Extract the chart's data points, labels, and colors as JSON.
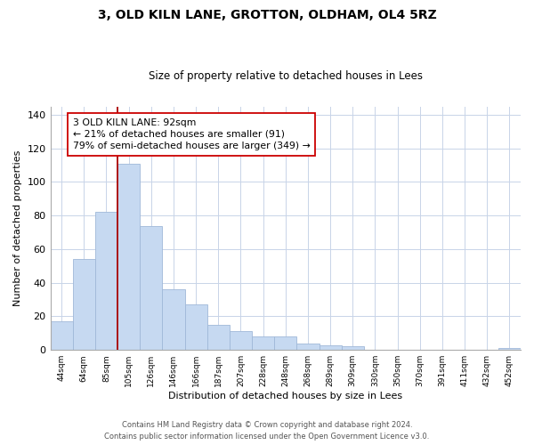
{
  "title": "3, OLD KILN LANE, GROTTON, OLDHAM, OL4 5RZ",
  "subtitle": "Size of property relative to detached houses in Lees",
  "xlabel": "Distribution of detached houses by size in Lees",
  "ylabel": "Number of detached properties",
  "bar_color": "#c6d9f1",
  "bar_edge_color": "#a0b8d8",
  "categories": [
    "44sqm",
    "64sqm",
    "85sqm",
    "105sqm",
    "126sqm",
    "146sqm",
    "166sqm",
    "187sqm",
    "207sqm",
    "228sqm",
    "248sqm",
    "268sqm",
    "289sqm",
    "309sqm",
    "330sqm",
    "350sqm",
    "370sqm",
    "391sqm",
    "411sqm",
    "432sqm",
    "452sqm"
  ],
  "values": [
    17,
    54,
    82,
    111,
    74,
    36,
    27,
    15,
    11,
    8,
    8,
    4,
    3,
    2,
    0,
    0,
    0,
    0,
    0,
    0,
    1
  ],
  "ylim": [
    0,
    145
  ],
  "yticks": [
    0,
    20,
    40,
    60,
    80,
    100,
    120,
    140
  ],
  "vline_color": "#aa0000",
  "annotation_text": "3 OLD KILN LANE: 92sqm\n← 21% of detached houses are smaller (91)\n79% of semi-detached houses are larger (349) →",
  "annotation_box_color": "#ffffff",
  "annotation_box_edge": "#cc0000",
  "footnote1": "Contains HM Land Registry data © Crown copyright and database right 2024.",
  "footnote2": "Contains public sector information licensed under the Open Government Licence v3.0.",
  "background_color": "#ffffff",
  "grid_color": "#c8d4e8"
}
